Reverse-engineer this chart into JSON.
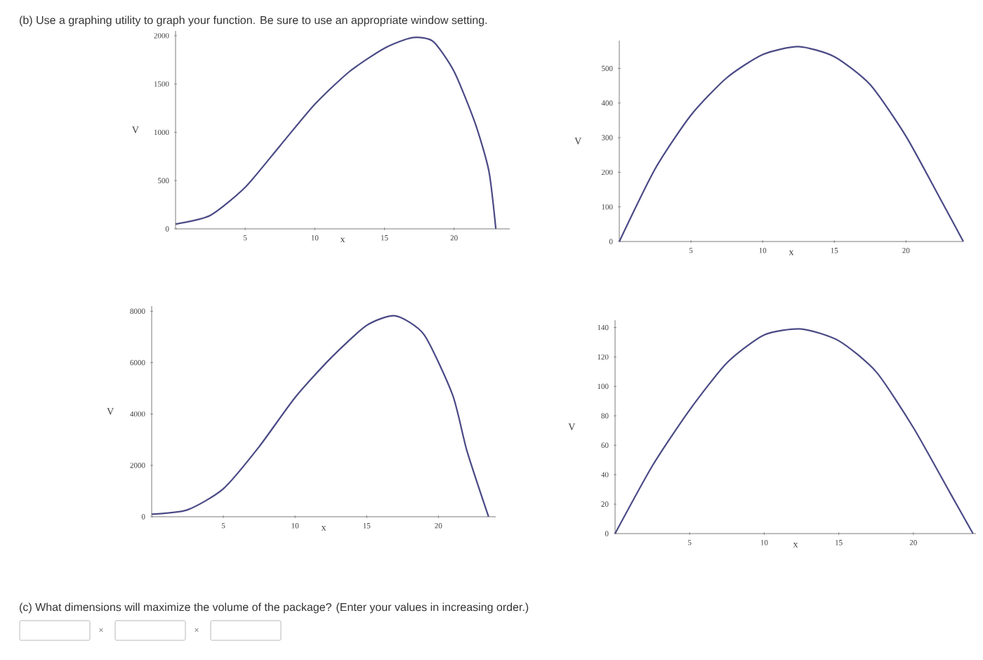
{
  "chart_data": [
    {
      "type": "line",
      "title": "(b) Use a graphing utility to graph your function. Be sure to use an appropriate window setting.",
      "xlabel": "x",
      "ylabel": "V",
      "xlim": [
        0,
        24
      ],
      "ylim": [
        0,
        2050
      ],
      "xticks": [
        5,
        10,
        15,
        20
      ],
      "yticks": [
        0,
        500,
        1000,
        1500,
        2000
      ],
      "series": [
        {
          "color": "#4a4a86",
          "x": [
            0,
            2.5,
            5,
            7.5,
            10,
            12.5,
            15,
            17,
            18.5,
            20,
            21.5,
            22.5,
            23
          ],
          "values": [
            50,
            140,
            430,
            860,
            1290,
            1630,
            1870,
            1980,
            1940,
            1630,
            1100,
            600,
            0
          ]
        }
      ]
    },
    {
      "type": "line",
      "xlabel": "x",
      "ylabel": "V",
      "xlim": [
        0,
        24
      ],
      "ylim": [
        0,
        580
      ],
      "xticks": [
        5,
        10,
        15,
        20
      ],
      "yticks": [
        0,
        100,
        200,
        300,
        400,
        500
      ],
      "series": [
        {
          "color": "#4a4a86",
          "x": [
            0,
            2.5,
            5,
            7.5,
            10,
            12.5,
            15,
            17.5,
            20,
            22.5,
            24
          ],
          "values": [
            0,
            210,
            365,
            473,
            540,
            563,
            534,
            453,
            304,
            115,
            0
          ]
        }
      ]
    },
    {
      "type": "line",
      "xlabel": "x",
      "ylabel": "V",
      "xlim": [
        0,
        24
      ],
      "ylim": [
        0,
        8200
      ],
      "xticks": [
        5,
        10,
        15,
        20
      ],
      "yticks": [
        0,
        2000,
        4000,
        6000,
        8000
      ],
      "series": [
        {
          "color": "#4a4a86",
          "x": [
            0,
            2.5,
            5,
            7.5,
            10,
            12.5,
            15,
            17,
            19,
            21,
            22,
            23.5
          ],
          "values": [
            100,
            270,
            1090,
            2730,
            4640,
            6180,
            7450,
            7820,
            7090,
            4730,
            2550,
            0
          ]
        }
      ]
    },
    {
      "type": "line",
      "xlabel": "x",
      "ylabel": "V",
      "xlim": [
        0,
        24.2
      ],
      "ylim": [
        0,
        145
      ],
      "xticks": [
        5,
        10,
        15,
        20
      ],
      "yticks": [
        0,
        20,
        40,
        60,
        80,
        100,
        120,
        140
      ],
      "annotations": [
        "(c) What dimensions will maximize the volume of the package? (Enter your values in increasing order.)",
        "×",
        "×"
      ],
      "series": [
        {
          "color": "#4a4a86",
          "x": [
            0,
            2.5,
            5,
            7.5,
            10,
            12.5,
            15,
            17.5,
            20,
            22.5,
            24
          ],
          "values": [
            0,
            46,
            84,
            116,
            135,
            139,
            131,
            110,
            72,
            27,
            0
          ]
        }
      ]
    }
  ]
}
